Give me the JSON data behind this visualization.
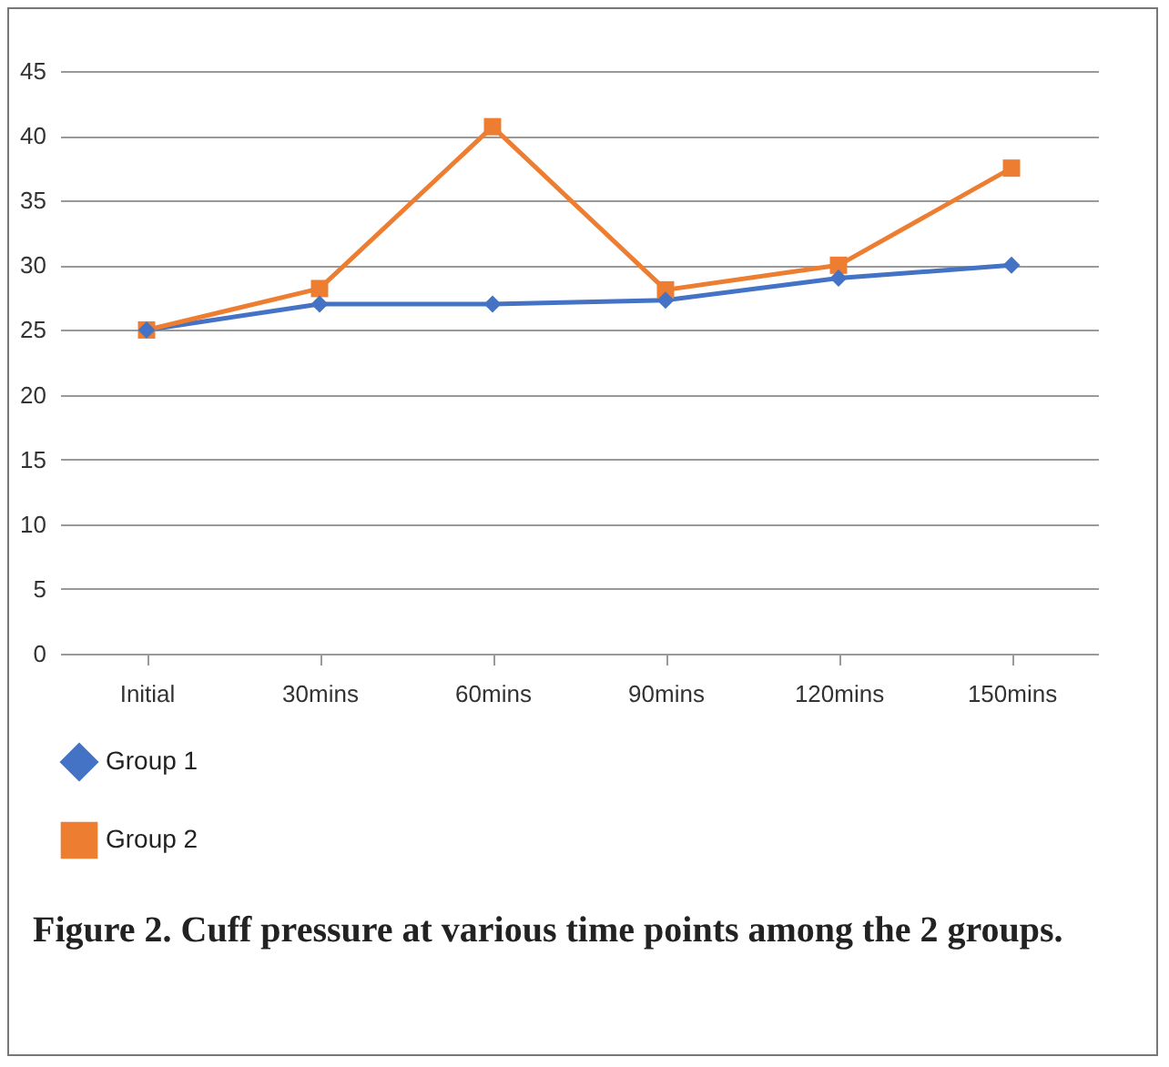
{
  "chart_data": {
    "type": "line",
    "categories": [
      "Initial",
      "30mins",
      "60mins",
      "90mins",
      "120mins",
      "150mins"
    ],
    "series": [
      {
        "name": "Group 1",
        "color": "#4472c4",
        "marker": "diamond",
        "values": [
          25,
          27,
          27,
          27.3,
          29,
          30
        ]
      },
      {
        "name": "Group 2",
        "color": "#ed7d31",
        "marker": "square",
        "values": [
          25,
          28.2,
          40.7,
          28.1,
          30,
          37.5
        ]
      }
    ],
    "ylim": [
      0,
      45
    ],
    "yticks": [
      0,
      5,
      10,
      15,
      20,
      25,
      30,
      35,
      40,
      45
    ],
    "grid": "y",
    "legend": "bottom",
    "line_style": "solid",
    "annotations": [
      "Figure 2. Cuff pressure at various time points among the 2 groups."
    ]
  }
}
